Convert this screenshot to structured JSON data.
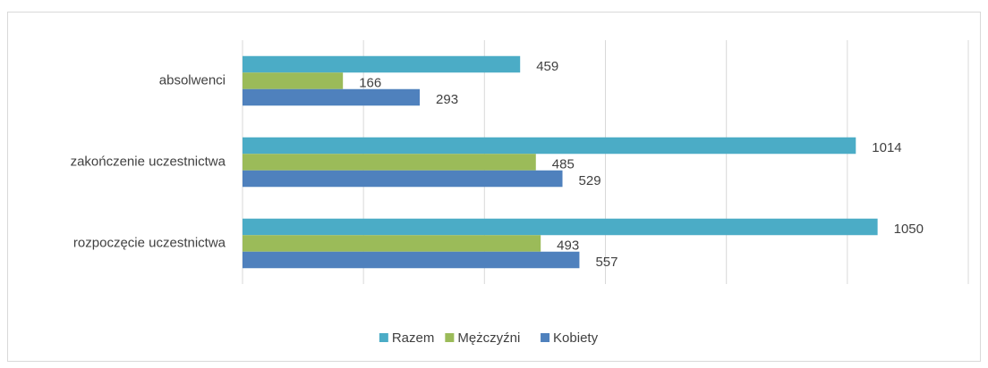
{
  "chart_data": {
    "type": "hbar",
    "categories": [
      "absolwenci",
      "zakończenie uczestnictwa",
      "rozpoczęcie uczestnictwa"
    ],
    "series": [
      {
        "name": "Razem",
        "color": "#4bacc6",
        "values": [
          459,
          1014,
          1050
        ]
      },
      {
        "name": "Mężczyźni",
        "color": "#9bbb59",
        "values": [
          166,
          485,
          493
        ]
      },
      {
        "name": "Kobiety",
        "color": "#4f81bd",
        "values": [
          293,
          529,
          557
        ]
      }
    ],
    "xlim": [
      0,
      1200
    ],
    "xticks": [
      0,
      200,
      400,
      600,
      800,
      1000,
      1200
    ],
    "grid": true,
    "legend": "bottom"
  }
}
